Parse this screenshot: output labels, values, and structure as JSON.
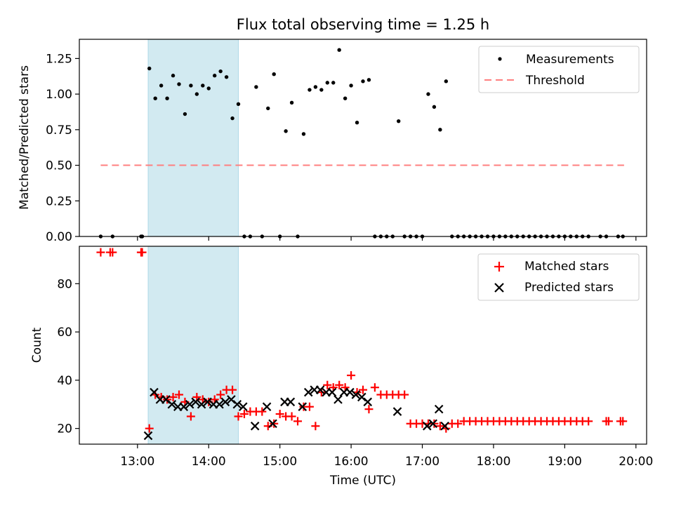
{
  "title": "Flux total observing time = 1.25 h",
  "chart_data": [
    {
      "type": "scatter",
      "ylabel": "Matched/Predicted stars",
      "xlabel": "",
      "x_range": [
        "12:11",
        "20:09"
      ],
      "ylim": [
        0,
        1.385
      ],
      "yticks": [
        "0.00",
        "0.25",
        "0.50",
        "0.75",
        "1.00",
        "1.25"
      ],
      "yticks_values": [
        0,
        0.25,
        0.5,
        0.75,
        1.0,
        1.25
      ],
      "legend": {
        "position": "top-right",
        "entries": [
          {
            "label": "Measurements",
            "marker": "dot",
            "color": "#000000"
          },
          {
            "label": "Threshold",
            "marker": "dashed-line",
            "color": "#ff7f7f"
          }
        ]
      },
      "shaded_interval": {
        "start": "13:09",
        "end": "14:25",
        "color": "#add8e6"
      },
      "threshold": {
        "value": 0.5,
        "start": "12:29",
        "end": "19:50",
        "color": "#ff7f7f"
      },
      "series": [
        {
          "name": "Measurements",
          "color": "#000000",
          "points": [
            [
              "12:29",
              0
            ],
            [
              "12:39",
              0
            ],
            [
              "13:03",
              0
            ],
            [
              "13:04",
              0
            ],
            [
              "13:10",
              1.18
            ],
            [
              "13:15",
              0.97
            ],
            [
              "13:20",
              1.06
            ],
            [
              "13:25",
              0.97
            ],
            [
              "13:30",
              1.13
            ],
            [
              "13:35",
              1.07
            ],
            [
              "13:40",
              0.86
            ],
            [
              "13:45",
              1.06
            ],
            [
              "13:50",
              1.0
            ],
            [
              "13:55",
              1.06
            ],
            [
              "14:00",
              1.04
            ],
            [
              "14:05",
              1.13
            ],
            [
              "14:10",
              1.16
            ],
            [
              "14:15",
              1.12
            ],
            [
              "14:20",
              0.83
            ],
            [
              "14:25",
              0.93
            ],
            [
              "14:30",
              0
            ],
            [
              "14:35",
              0
            ],
            [
              "14:40",
              1.05
            ],
            [
              "14:45",
              0
            ],
            [
              "14:50",
              0.9
            ],
            [
              "14:55",
              1.14
            ],
            [
              "15:00",
              0
            ],
            [
              "15:05",
              0.74
            ],
            [
              "15:10",
              0.94
            ],
            [
              "15:15",
              0
            ],
            [
              "15:20",
              0.72
            ],
            [
              "15:25",
              1.03
            ],
            [
              "15:30",
              1.05
            ],
            [
              "15:35",
              1.03
            ],
            [
              "15:40",
              1.08
            ],
            [
              "15:45",
              1.08
            ],
            [
              "15:50",
              1.31
            ],
            [
              "15:55",
              0.97
            ],
            [
              "16:00",
              1.06
            ],
            [
              "16:05",
              0.8
            ],
            [
              "16:10",
              1.09
            ],
            [
              "16:15",
              1.1
            ],
            [
              "16:20",
              0
            ],
            [
              "16:25",
              0
            ],
            [
              "16:30",
              0
            ],
            [
              "16:35",
              0
            ],
            [
              "16:40",
              0.81
            ],
            [
              "16:45",
              0
            ],
            [
              "16:50",
              0
            ],
            [
              "16:55",
              0
            ],
            [
              "17:00",
              0
            ],
            [
              "17:05",
              1.0
            ],
            [
              "17:10",
              0.91
            ],
            [
              "17:15",
              0.75
            ],
            [
              "17:20",
              1.09
            ],
            [
              "17:25",
              0
            ],
            [
              "17:30",
              0
            ],
            [
              "17:35",
              0
            ],
            [
              "17:40",
              0
            ],
            [
              "17:45",
              0
            ],
            [
              "17:50",
              0
            ],
            [
              "17:55",
              0
            ],
            [
              "18:00",
              0
            ],
            [
              "18:05",
              0
            ],
            [
              "18:10",
              0
            ],
            [
              "18:15",
              0
            ],
            [
              "18:20",
              0
            ],
            [
              "18:25",
              0
            ],
            [
              "18:30",
              0
            ],
            [
              "18:35",
              0
            ],
            [
              "18:40",
              0
            ],
            [
              "18:45",
              0
            ],
            [
              "18:50",
              0
            ],
            [
              "18:55",
              0
            ],
            [
              "19:00",
              0
            ],
            [
              "19:05",
              0
            ],
            [
              "19:10",
              0
            ],
            [
              "19:15",
              0
            ],
            [
              "19:20",
              0
            ],
            [
              "19:30",
              0
            ],
            [
              "19:35",
              0
            ],
            [
              "19:45",
              0
            ],
            [
              "19:49",
              0
            ]
          ]
        }
      ]
    },
    {
      "type": "scatter",
      "xlabel": "Time (UTC)",
      "ylabel": "Count",
      "x_range": [
        "12:11",
        "20:09"
      ],
      "ylim": [
        13.5,
        95.5
      ],
      "xticks": [
        "13:00",
        "14:00",
        "15:00",
        "16:00",
        "17:00",
        "18:00",
        "19:00",
        "20:00"
      ],
      "yticks": [
        "20",
        "40",
        "60",
        "80"
      ],
      "yticks_values": [
        20,
        40,
        60,
        80
      ],
      "legend": {
        "position": "top-right",
        "entries": [
          {
            "label": "Matched stars",
            "marker": "plus",
            "color": "#ff0000"
          },
          {
            "label": "Predicted stars",
            "marker": "x",
            "color": "#000000"
          }
        ]
      },
      "shaded_interval": {
        "start": "13:09",
        "end": "14:25",
        "color": "#add8e6"
      },
      "series": [
        {
          "name": "Matched stars",
          "color": "#ff0000",
          "marker": "plus",
          "points": [
            [
              "12:29",
              93
            ],
            [
              "12:37",
              93
            ],
            [
              "12:39",
              93
            ],
            [
              "13:03",
              93
            ],
            [
              "13:04",
              93
            ],
            [
              "13:10",
              20
            ],
            [
              "13:15",
              34
            ],
            [
              "13:20",
              33
            ],
            [
              "13:25",
              32
            ],
            [
              "13:30",
              33
            ],
            [
              "13:35",
              34
            ],
            [
              "13:40",
              31
            ],
            [
              "13:45",
              25
            ],
            [
              "13:50",
              33
            ],
            [
              "13:55",
              32
            ],
            [
              "14:00",
              31
            ],
            [
              "14:05",
              32
            ],
            [
              "14:10",
              34
            ],
            [
              "14:15",
              36
            ],
            [
              "14:20",
              36
            ],
            [
              "14:25",
              25
            ],
            [
              "14:30",
              26
            ],
            [
              "14:35",
              27
            ],
            [
              "14:40",
              27
            ],
            [
              "14:45",
              27
            ],
            [
              "14:50",
              21
            ],
            [
              "14:55",
              22
            ],
            [
              "15:00",
              26
            ],
            [
              "15:05",
              25
            ],
            [
              "15:10",
              25
            ],
            [
              "15:15",
              23
            ],
            [
              "15:20",
              29
            ],
            [
              "15:25",
              29
            ],
            [
              "15:30",
              21
            ],
            [
              "15:35",
              35
            ],
            [
              "15:40",
              38
            ],
            [
              "15:45",
              37
            ],
            [
              "15:50",
              38
            ],
            [
              "15:55",
              37
            ],
            [
              "16:00",
              42
            ],
            [
              "16:05",
              35
            ],
            [
              "16:10",
              36
            ],
            [
              "16:15",
              28
            ],
            [
              "16:20",
              37
            ],
            [
              "16:25",
              34
            ],
            [
              "16:30",
              34
            ],
            [
              "16:35",
              34
            ],
            [
              "16:40",
              34
            ],
            [
              "16:45",
              34
            ],
            [
              "16:50",
              22
            ],
            [
              "16:55",
              22
            ],
            [
              "17:00",
              22
            ],
            [
              "17:05",
              22
            ],
            [
              "17:10",
              22
            ],
            [
              "17:15",
              21
            ],
            [
              "17:20",
              20
            ],
            [
              "17:25",
              22
            ],
            [
              "17:30",
              22
            ],
            [
              "17:35",
              23
            ],
            [
              "17:40",
              23
            ],
            [
              "17:45",
              23
            ],
            [
              "17:50",
              23
            ],
            [
              "17:55",
              23
            ],
            [
              "18:00",
              23
            ],
            [
              "18:05",
              23
            ],
            [
              "18:10",
              23
            ],
            [
              "18:15",
              23
            ],
            [
              "18:20",
              23
            ],
            [
              "18:25",
              23
            ],
            [
              "18:30",
              23
            ],
            [
              "18:35",
              23
            ],
            [
              "18:40",
              23
            ],
            [
              "18:45",
              23
            ],
            [
              "18:50",
              23
            ],
            [
              "18:55",
              23
            ],
            [
              "19:00",
              23
            ],
            [
              "19:05",
              23
            ],
            [
              "19:10",
              23
            ],
            [
              "19:15",
              23
            ],
            [
              "19:20",
              23
            ],
            [
              "19:35",
              23
            ],
            [
              "19:37",
              23
            ],
            [
              "19:47",
              23
            ],
            [
              "19:49",
              23
            ]
          ]
        },
        {
          "name": "Predicted stars",
          "color": "#000000",
          "marker": "x",
          "points": [
            [
              "13:09",
              17
            ],
            [
              "13:14",
              35
            ],
            [
              "13:19",
              32
            ],
            [
              "13:24",
              32
            ],
            [
              "13:29",
              30
            ],
            [
              "13:34",
              29
            ],
            [
              "13:39",
              29
            ],
            [
              "13:44",
              30
            ],
            [
              "13:49",
              31
            ],
            [
              "13:54",
              30
            ],
            [
              "13:59",
              31
            ],
            [
              "14:04",
              30
            ],
            [
              "14:09",
              30
            ],
            [
              "14:14",
              31
            ],
            [
              "14:19",
              32
            ],
            [
              "14:24",
              30
            ],
            [
              "14:29",
              29
            ],
            [
              "14:39",
              21
            ],
            [
              "14:49",
              29
            ],
            [
              "14:54",
              22
            ],
            [
              "15:04",
              31
            ],
            [
              "15:09",
              31
            ],
            [
              "15:19",
              29
            ],
            [
              "15:24",
              35
            ],
            [
              "15:29",
              36
            ],
            [
              "15:34",
              36
            ],
            [
              "15:39",
              35
            ],
            [
              "15:44",
              35
            ],
            [
              "15:49",
              32
            ],
            [
              "15:54",
              35
            ],
            [
              "15:59",
              35
            ],
            [
              "16:04",
              34
            ],
            [
              "16:09",
              33
            ],
            [
              "16:14",
              31
            ],
            [
              "16:39",
              27
            ],
            [
              "17:04",
              21
            ],
            [
              "17:09",
              22
            ],
            [
              "17:14",
              28
            ],
            [
              "17:19",
              21
            ]
          ]
        }
      ]
    }
  ]
}
